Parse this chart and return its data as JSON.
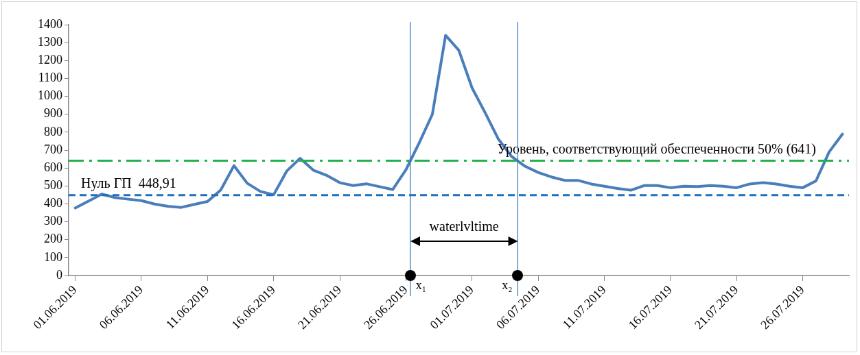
{
  "chart_data": {
    "type": "line",
    "x": [
      "2019-06-01",
      "2019-06-02",
      "2019-06-03",
      "2019-06-04",
      "2019-06-05",
      "2019-06-06",
      "2019-06-07",
      "2019-06-08",
      "2019-06-09",
      "2019-06-10",
      "2019-06-11",
      "2019-06-12",
      "2019-06-13",
      "2019-06-14",
      "2019-06-15",
      "2019-06-16",
      "2019-06-17",
      "2019-06-18",
      "2019-06-19",
      "2019-06-20",
      "2019-06-21",
      "2019-06-22",
      "2019-06-23",
      "2019-06-24",
      "2019-06-25",
      "2019-06-26",
      "2019-06-27",
      "2019-06-28",
      "2019-06-29",
      "2019-06-30",
      "2019-07-01",
      "2019-07-02",
      "2019-07-03",
      "2019-07-04",
      "2019-07-05",
      "2019-07-06",
      "2019-07-07",
      "2019-07-08",
      "2019-07-09",
      "2019-07-10",
      "2019-07-11",
      "2019-07-12",
      "2019-07-13",
      "2019-07-14",
      "2019-07-15",
      "2019-07-16",
      "2019-07-17",
      "2019-07-18",
      "2019-07-19",
      "2019-07-20",
      "2019-07-21",
      "2019-07-22",
      "2019-07-23",
      "2019-07-24",
      "2019-07-25",
      "2019-07-26",
      "2019-07-27",
      "2019-07-28",
      "2019-07-29"
    ],
    "series": [
      {
        "color": "#4a7ebb",
        "values": [
          377,
          415,
          454,
          435,
          426,
          418,
          399,
          386,
          380,
          397,
          413,
          477,
          613,
          515,
          469,
          451,
          584,
          654,
          588,
          559,
          518,
          502,
          512,
          496,
          480,
          590,
          740,
          900,
          1340,
          1257,
          1047,
          907,
          760,
          664,
          610,
          575,
          550,
          531,
          531,
          511,
          498,
          486,
          476,
          502,
          502,
          490,
          498,
          496,
          502,
          498,
          490,
          511,
          518,
          511,
          498,
          490,
          528,
          690,
          789
        ]
      }
    ],
    "xlim": [
      "2019-05-31T12:00",
      "2019-07-29T12:00"
    ],
    "xticks": [
      {
        "value": "2019-06-01",
        "label": "01.06.2019"
      },
      {
        "value": "2019-06-06",
        "label": "06.06.2019"
      },
      {
        "value": "2019-06-11",
        "label": "11.06.2019"
      },
      {
        "value": "2019-06-16",
        "label": "16.06.2019"
      },
      {
        "value": "2019-06-21",
        "label": "21.06.2019"
      },
      {
        "value": "2019-06-26",
        "label": "26.06.2019"
      },
      {
        "value": "2019-07-01",
        "label": "01.07.2019"
      },
      {
        "value": "2019-07-06",
        "label": "06.07.2019"
      },
      {
        "value": "2019-07-11",
        "label": "11.07.2019"
      },
      {
        "value": "2019-07-16",
        "label": "16.07.2019"
      },
      {
        "value": "2019-07-21",
        "label": "21.07.2019"
      },
      {
        "value": "2019-07-26",
        "label": "26.07.2019"
      }
    ],
    "ylim": [
      0,
      1400
    ],
    "yticks": [
      0,
      100,
      200,
      300,
      400,
      500,
      600,
      700,
      800,
      900,
      1000,
      1100,
      1200,
      1300,
      1400
    ],
    "ref_lines": [
      {
        "axis": "y",
        "value": 448.91,
        "label": "Нуль ГП  448,91",
        "color": "#1f6fbf",
        "line_style": "dashed"
      },
      {
        "axis": "y",
        "value": 641,
        "label": "Уровень, соответствующий обеспеченности 50% (641)",
        "color": "#22b14c",
        "line_style": "dashdot"
      },
      {
        "axis": "x",
        "value": "2019-06-26T08:00",
        "label": "x₁",
        "color": "#2e75b6",
        "line_style": "solid"
      },
      {
        "axis": "x",
        "value": "2019-07-04T11:00",
        "label": "x₂",
        "color": "#2e75b6",
        "line_style": "solid"
      }
    ],
    "annotations": [
      "waterlvltime"
    ],
    "grid": false,
    "legend": false,
    "marker": "none",
    "line_style": "solid"
  }
}
